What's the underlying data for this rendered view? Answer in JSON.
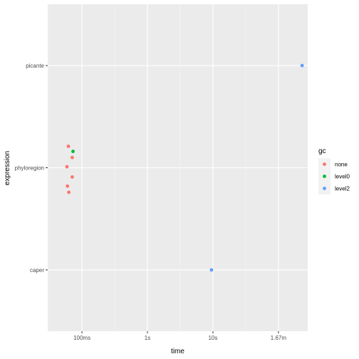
{
  "chart_data": {
    "type": "scatter",
    "xlabel": "time",
    "ylabel": "expression",
    "x_scale": "log10",
    "x_unit": "seconds",
    "x_ticks": [
      {
        "value": 0.1,
        "label": "100ms"
      },
      {
        "value": 1,
        "label": "1s"
      },
      {
        "value": 10,
        "label": "10s"
      },
      {
        "value": 100,
        "label": "1.67m"
      }
    ],
    "xlim": [
      0.03,
      280
    ],
    "categories": [
      "caper",
      "phyloregion",
      "picante"
    ],
    "legend": {
      "title": "gc",
      "placement": "right"
    },
    "series": [
      {
        "name": "none",
        "color": "#F8766D",
        "points": [
          {
            "x": 0.062,
            "y": "phyloregion",
            "jitter": 0.21
          },
          {
            "x": 0.071,
            "y": "phyloregion",
            "jitter": 0.1
          },
          {
            "x": 0.059,
            "y": "phyloregion",
            "jitter": 0.01
          },
          {
            "x": 0.071,
            "y": "phyloregion",
            "jitter": -0.09
          },
          {
            "x": 0.06,
            "y": "phyloregion",
            "jitter": -0.18
          },
          {
            "x": 0.063,
            "y": "phyloregion",
            "jitter": -0.24
          }
        ]
      },
      {
        "name": "level0",
        "color": "#00BA38",
        "points": [
          {
            "x": 0.073,
            "y": "phyloregion",
            "jitter": 0.16
          }
        ]
      },
      {
        "name": "level2",
        "color": "#619CFF",
        "points": [
          {
            "x": 9.5,
            "y": "caper",
            "jitter": 0.0
          },
          {
            "x": 230,
            "y": "picante",
            "jitter": 0.0
          }
        ]
      }
    ]
  }
}
